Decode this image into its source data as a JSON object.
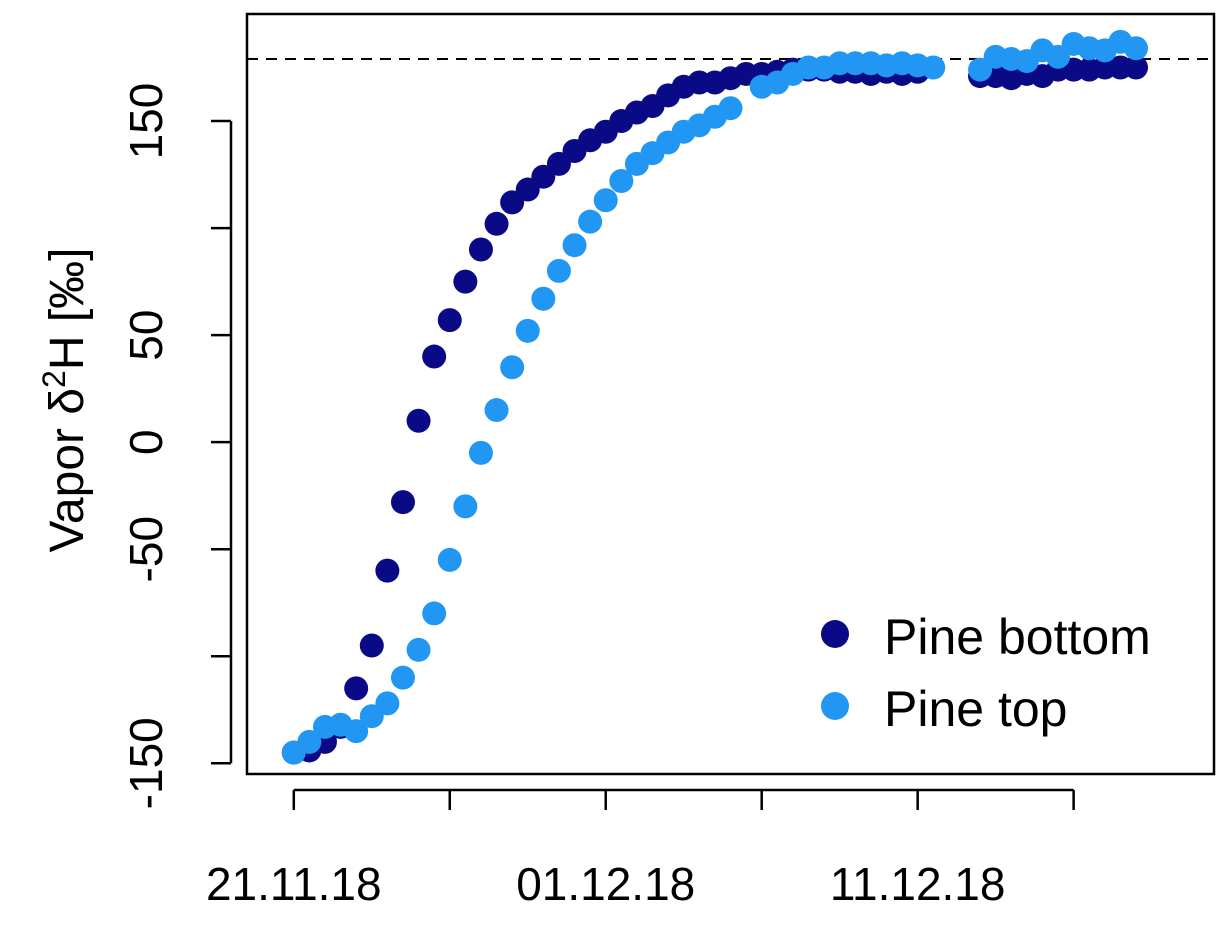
{
  "chart_data": {
    "type": "scatter",
    "title": "",
    "xlabel": "",
    "ylabel_prefix": "Vapor δ",
    "ylabel_superscript": "2",
    "ylabel_suffix": "H [‰]",
    "x_unit": "date",
    "x_date_format": "DD.MM.YY",
    "xlim": [
      "2018-11-19T12:00",
      "2018-12-20T12:00"
    ],
    "ylim": [
      -155,
      200
    ],
    "x_ticks": [
      "2018-11-21",
      "2018-11-26",
      "2018-12-01",
      "2018-12-06",
      "2018-12-11",
      "2018-12-16"
    ],
    "x_tick_labels": [
      {
        "date": "2018-11-21",
        "label": "21.11.18"
      },
      {
        "date": "2018-12-01",
        "label": "01.12.18"
      },
      {
        "date": "2018-12-11",
        "label": "11.12.18"
      }
    ],
    "y_ticks": [
      -150,
      -100,
      -50,
      0,
      50,
      100,
      150
    ],
    "y_tick_labels": [
      {
        "value": -150,
        "label": "-150"
      },
      {
        "value": -50,
        "label": "-50"
      },
      {
        "value": 0,
        "label": "0"
      },
      {
        "value": 50,
        "label": "50"
      },
      {
        "value": 150,
        "label": "150"
      }
    ],
    "reference_line": {
      "y": 179,
      "style": "dashed",
      "color": "#000000"
    },
    "grid": false,
    "legend_position": "bottom-right",
    "series": [
      {
        "name": "Pine bottom",
        "color": "#0a0a87",
        "points": [
          [
            "2018-11-21T00:00",
            -145
          ],
          [
            "2018-11-21T12:00",
            -144
          ],
          [
            "2018-11-22T00:00",
            -140
          ],
          [
            "2018-11-22T12:00",
            -133
          ],
          [
            "2018-11-23T00:00",
            -115
          ],
          [
            "2018-11-23T12:00",
            -95
          ],
          [
            "2018-11-24T00:00",
            -60
          ],
          [
            "2018-11-24T12:00",
            -28
          ],
          [
            "2018-11-25T00:00",
            10
          ],
          [
            "2018-11-25T12:00",
            40
          ],
          [
            "2018-11-26T00:00",
            57
          ],
          [
            "2018-11-26T12:00",
            75
          ],
          [
            "2018-11-27T00:00",
            90
          ],
          [
            "2018-11-27T12:00",
            102
          ],
          [
            "2018-11-28T00:00",
            112
          ],
          [
            "2018-11-28T12:00",
            118
          ],
          [
            "2018-11-29T00:00",
            124
          ],
          [
            "2018-11-29T12:00",
            130
          ],
          [
            "2018-11-30T00:00",
            136
          ],
          [
            "2018-11-30T12:00",
            141
          ],
          [
            "2018-12-01T00:00",
            145
          ],
          [
            "2018-12-01T12:00",
            150
          ],
          [
            "2018-12-02T00:00",
            154
          ],
          [
            "2018-12-02T12:00",
            157
          ],
          [
            "2018-12-03T00:00",
            162
          ],
          [
            "2018-12-03T12:00",
            166
          ],
          [
            "2018-12-04T00:00",
            168
          ],
          [
            "2018-12-04T12:00",
            168
          ],
          [
            "2018-12-05T00:00",
            170
          ],
          [
            "2018-12-05T12:00",
            172
          ],
          [
            "2018-12-06T00:00",
            172
          ],
          [
            "2018-12-06T12:00",
            173
          ],
          [
            "2018-12-07T00:00",
            174
          ],
          [
            "2018-12-07T12:00",
            174
          ],
          [
            "2018-12-08T00:00",
            174
          ],
          [
            "2018-12-08T12:00",
            173
          ],
          [
            "2018-12-09T00:00",
            173
          ],
          [
            "2018-12-09T12:00",
            172
          ],
          [
            "2018-12-10T00:00",
            173
          ],
          [
            "2018-12-10T12:00",
            172
          ],
          [
            "2018-12-11T00:00",
            173
          ],
          [
            "2018-12-13T00:00",
            171
          ],
          [
            "2018-12-13T12:00",
            171
          ],
          [
            "2018-12-14T00:00",
            170
          ],
          [
            "2018-12-14T12:00",
            172
          ],
          [
            "2018-12-15T00:00",
            171
          ],
          [
            "2018-12-15T12:00",
            174
          ],
          [
            "2018-12-16T00:00",
            174
          ],
          [
            "2018-12-16T12:00",
            174
          ],
          [
            "2018-12-17T00:00",
            175
          ],
          [
            "2018-12-17T12:00",
            175
          ],
          [
            "2018-12-18T00:00",
            175
          ]
        ]
      },
      {
        "name": "Pine top",
        "color": "#2196f3",
        "points": [
          [
            "2018-11-21T00:00",
            -145
          ],
          [
            "2018-11-21T12:00",
            -140
          ],
          [
            "2018-11-22T00:00",
            -133
          ],
          [
            "2018-11-22T12:00",
            -132
          ],
          [
            "2018-11-23T00:00",
            -135
          ],
          [
            "2018-11-23T12:00",
            -128
          ],
          [
            "2018-11-24T00:00",
            -122
          ],
          [
            "2018-11-24T12:00",
            -110
          ],
          [
            "2018-11-25T00:00",
            -97
          ],
          [
            "2018-11-25T12:00",
            -80
          ],
          [
            "2018-11-26T00:00",
            -55
          ],
          [
            "2018-11-26T12:00",
            -30
          ],
          [
            "2018-11-27T00:00",
            -5
          ],
          [
            "2018-11-27T12:00",
            15
          ],
          [
            "2018-11-28T00:00",
            35
          ],
          [
            "2018-11-28T12:00",
            52
          ],
          [
            "2018-11-29T00:00",
            67
          ],
          [
            "2018-11-29T12:00",
            80
          ],
          [
            "2018-11-30T00:00",
            92
          ],
          [
            "2018-11-30T12:00",
            103
          ],
          [
            "2018-12-01T00:00",
            113
          ],
          [
            "2018-12-01T12:00",
            122
          ],
          [
            "2018-12-02T00:00",
            130
          ],
          [
            "2018-12-02T12:00",
            135
          ],
          [
            "2018-12-03T00:00",
            140
          ],
          [
            "2018-12-03T12:00",
            145
          ],
          [
            "2018-12-04T00:00",
            148
          ],
          [
            "2018-12-04T12:00",
            152
          ],
          [
            "2018-12-05T00:00",
            156
          ],
          [
            "2018-12-06T00:00",
            166
          ],
          [
            "2018-12-06T12:00",
            168
          ],
          [
            "2018-12-07T00:00",
            172
          ],
          [
            "2018-12-07T12:00",
            175
          ],
          [
            "2018-12-08T00:00",
            175
          ],
          [
            "2018-12-08T12:00",
            177
          ],
          [
            "2018-12-09T00:00",
            177
          ],
          [
            "2018-12-09T12:00",
            177
          ],
          [
            "2018-12-10T00:00",
            176
          ],
          [
            "2018-12-10T12:00",
            177
          ],
          [
            "2018-12-11T00:00",
            176
          ],
          [
            "2018-12-11T12:00",
            175
          ],
          [
            "2018-12-13T00:00",
            174
          ],
          [
            "2018-12-13T12:00",
            180
          ],
          [
            "2018-12-14T00:00",
            179
          ],
          [
            "2018-12-14T12:00",
            178
          ],
          [
            "2018-12-15T00:00",
            183
          ],
          [
            "2018-12-15T12:00",
            180
          ],
          [
            "2018-12-16T00:00",
            186
          ],
          [
            "2018-12-16T12:00",
            184
          ],
          [
            "2018-12-17T00:00",
            183
          ],
          [
            "2018-12-17T12:00",
            187
          ],
          [
            "2018-12-18T00:00",
            184
          ]
        ]
      }
    ]
  }
}
